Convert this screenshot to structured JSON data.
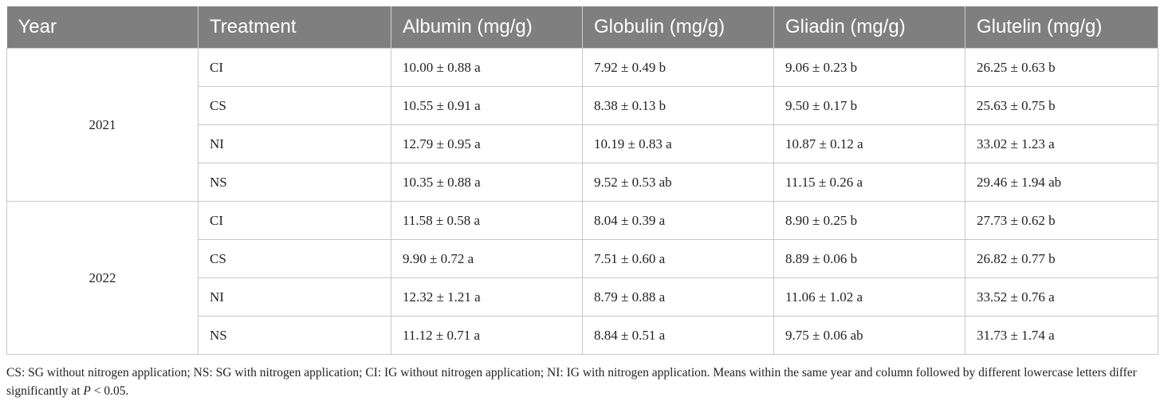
{
  "table": {
    "columns": [
      "Year",
      "Treatment",
      "Albumin (mg/g)",
      "Globulin (mg/g)",
      "Gliadin (mg/g)",
      "Glutelin (mg/g)"
    ],
    "groups": [
      {
        "year": "2021",
        "rows": [
          [
            "CI",
            "10.00 ± 0.88 a",
            "7.92 ± 0.49 b",
            "9.06 ± 0.23 b",
            "26.25 ± 0.63 b"
          ],
          [
            "CS",
            "10.55 ± 0.91 a",
            "8.38 ± 0.13 b",
            "9.50 ± 0.17 b",
            "25.63 ± 0.75 b"
          ],
          [
            "NI",
            "12.79 ± 0.95 a",
            "10.19 ± 0.83 a",
            "10.87 ± 0.12 a",
            "33.02 ± 1.23 a"
          ],
          [
            "NS",
            "10.35 ± 0.88 a",
            "9.52 ± 0.53 ab",
            "11.15 ± 0.26 a",
            "29.46 ± 1.94 ab"
          ]
        ]
      },
      {
        "year": "2022",
        "rows": [
          [
            "CI",
            "11.58 ± 0.58 a",
            "8.04 ± 0.39 a",
            "8.90 ± 0.25 b",
            "27.73 ± 0.62 b"
          ],
          [
            "CS",
            "9.90 ± 0.72 a",
            "7.51 ± 0.60 a",
            "8.89 ± 0.06 b",
            "26.82 ± 0.77 b"
          ],
          [
            "NI",
            "12.32 ± 1.21 a",
            "8.79 ± 0.88 a",
            "11.06 ± 1.02 a",
            "33.52 ± 0.76 a"
          ],
          [
            "NS",
            "11.12 ± 0.71 a",
            "8.84 ± 0.51 a",
            "9.75 ± 0.06 ab",
            "31.73 ± 1.74 a"
          ]
        ]
      }
    ]
  },
  "footnote": {
    "text": "CS: SG without nitrogen application; NS: SG with nitrogen application; CI: IG without nitrogen application; NI: IG with nitrogen application. Means within the same year and column followed by different lowercase letters differ significantly at ",
    "italic": "P",
    "tail": " < 0.05."
  }
}
